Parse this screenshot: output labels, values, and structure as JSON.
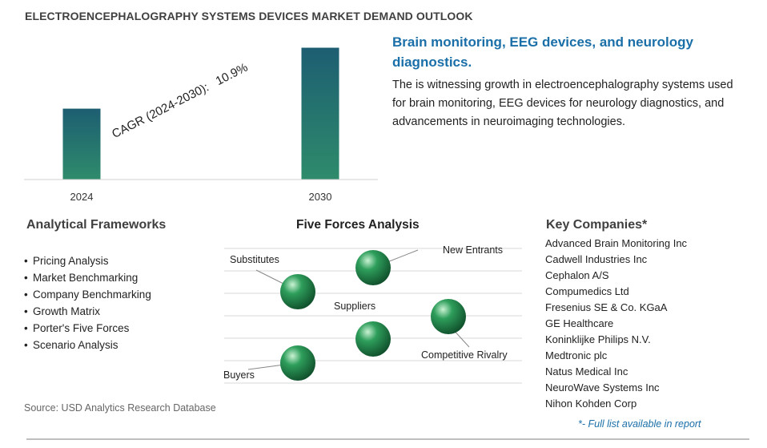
{
  "header": {
    "title": "ELECTROENCEPHALOGRAPHY SYSTEMS DEVICES MARKET DEMAND OUTLOOK"
  },
  "chart_data": {
    "type": "bar",
    "categories": [
      "2024",
      "2030"
    ],
    "values": [
      1.0,
      1.86
    ],
    "annotation": {
      "label": "CAGR (2024-2030):",
      "value": "10.9%"
    },
    "ylim": [
      0,
      1.9
    ],
    "grid": false,
    "colors": {
      "top": "#1d5e72",
      "bottom": "#2e8b6b"
    }
  },
  "summary": {
    "headline": "Brain monitoring, EEG devices, and neurology diagnostics.",
    "description": "The is witnessing growth in electroencephalography systems used for brain monitoring, EEG devices for neurology diagnostics, and advancements in neuroimaging technologies."
  },
  "frameworks": {
    "title": "Analytical Frameworks",
    "items": [
      "Pricing Analysis",
      "Market Benchmarking",
      "Company Benchmarking",
      "Growth Matrix",
      "Porter's Five Forces",
      "Scenario Analysis"
    ]
  },
  "five_forces": {
    "title": "Five Forces Analysis",
    "labels": {
      "substitutes": "Substitutes",
      "new_entrants": "New Entrants",
      "suppliers": "Suppliers",
      "competitive_rivalry": "Competitive Rivalry",
      "buyers": "Buyers"
    },
    "sphere_color": "#2e9e5b"
  },
  "companies": {
    "title": "Key Companies*",
    "items": [
      "Advanced Brain Monitoring Inc",
      "Cadwell Industries Inc",
      "Cephalon A/S",
      "Compumedics Ltd",
      "Fresenius SE & Co. KGaA",
      "GE Healthcare",
      "Koninklijke Philips N.V.",
      "Medtronic plc",
      "Natus Medical Inc",
      "NeuroWave Systems Inc",
      "Nihon Kohden Corp"
    ],
    "note": "*- Full list available in report"
  },
  "footer": {
    "source": "Source: USD Analytics Research Database"
  }
}
